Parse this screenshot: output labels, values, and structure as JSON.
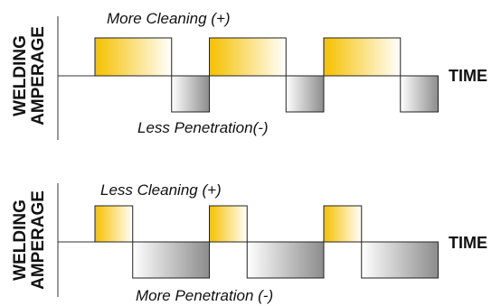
{
  "colors": {
    "positive_start": "#f5c000",
    "positive_end": "#ffffff",
    "negative_start": "#ffffff",
    "negative_end": "#8c8c8c",
    "outline": "#222222"
  },
  "panels": [
    {
      "y_axis_label_line1": "WELDING",
      "y_axis_label_line2": "AMPERAGE",
      "time_label": "TIME",
      "positive_annotation": "More Cleaning (+)",
      "negative_annotation": "Less Penetration(-)",
      "positive_fraction": 0.67
    },
    {
      "y_axis_label_line1": "WELDING",
      "y_axis_label_line2": "AMPERAGE",
      "time_label": "TIME",
      "positive_annotation": "Less Cleaning (+)",
      "negative_annotation": "More Penetration (-)",
      "positive_fraction": 0.33
    }
  ]
}
